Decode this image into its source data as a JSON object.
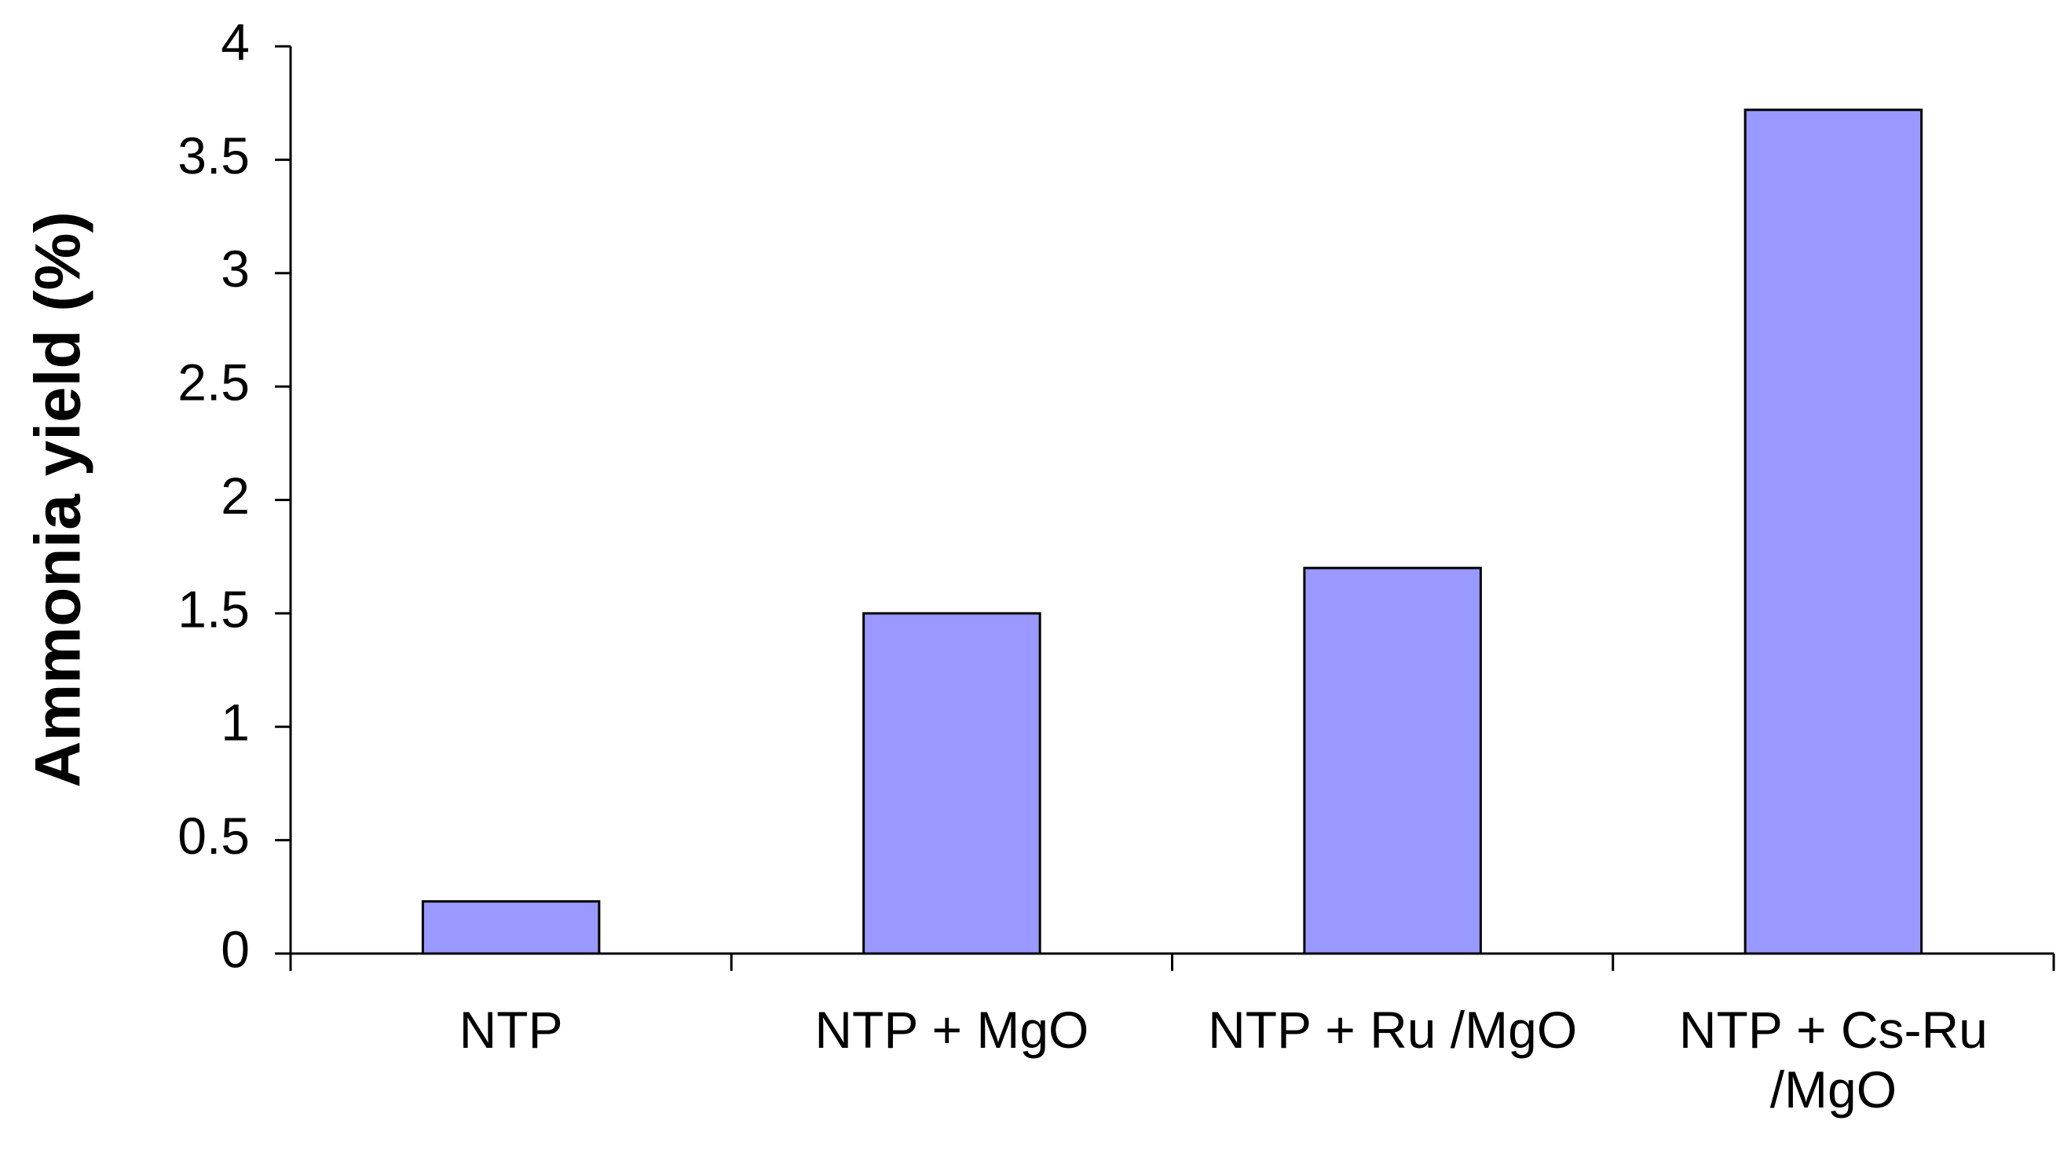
{
  "chart_data": {
    "type": "bar",
    "y_label": "Ammonia yield (%)",
    "categories": [
      "NTP",
      "NTP + MgO",
      "NTP + Ru /MgO",
      "NTP + Cs-Ru /MgO"
    ],
    "values": [
      0.23,
      1.5,
      1.7,
      3.72
    ],
    "color": "#9999ff",
    "ylim": [
      0,
      4
    ],
    "yticks": [
      0,
      0.5,
      1,
      1.5,
      2,
      2.5,
      3,
      3.5,
      4
    ],
    "grid": false
  }
}
